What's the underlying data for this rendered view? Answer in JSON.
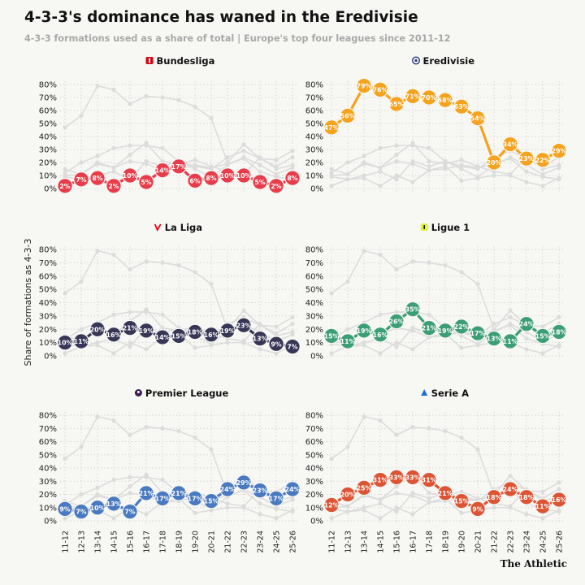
{
  "title": "4-3-3's dominance has waned in the Eredivisie",
  "subtitle": "4-3-3 formations used as a share of total | Europe's top four leagues since 2011-12",
  "credit": "The Athletic",
  "ylabel": "Share of formations as 4-3-3",
  "chart_data": {
    "type": "line",
    "seasons": [
      "11-12",
      "12-13",
      "13-14",
      "14-15",
      "15-16",
      "16-17",
      "17-18",
      "18-19",
      "19-20",
      "20-21",
      "21-22",
      "22-23",
      "23-24",
      "24-25",
      "25-26"
    ],
    "ylim": [
      0,
      80
    ],
    "yticks": [
      "0%",
      "10%",
      "20%",
      "30%",
      "40%",
      "50%",
      "60%",
      "70%",
      "80%"
    ],
    "grid": true,
    "background_series_color": "#dcdcdc",
    "panels": [
      {
        "name": "Bundesliga",
        "color": "#e83c4a",
        "icon": "bundesliga-logo-icon",
        "values": [
          2,
          7,
          8,
          2,
          10,
          5,
          14,
          17,
          6,
          8,
          10,
          10,
          5,
          2,
          8
        ]
      },
      {
        "name": "Eredivisie",
        "color": "#f5a21c",
        "icon": "eredivisie-logo-icon",
        "values": [
          47,
          56,
          79,
          76,
          65,
          71,
          70,
          68,
          63,
          54,
          20,
          34,
          23,
          22,
          29
        ]
      },
      {
        "name": "La Liga",
        "color": "#373656",
        "icon": "laliga-logo-icon",
        "values": [
          10,
          11,
          20,
          16,
          21,
          19,
          14,
          15,
          18,
          16,
          19,
          23,
          13,
          9,
          7
        ]
      },
      {
        "name": "Ligue 1",
        "color": "#3c9e75",
        "icon": "ligue1-logo-icon",
        "values": [
          15,
          11,
          19,
          16,
          26,
          35,
          21,
          19,
          22,
          17,
          13,
          11,
          24,
          15,
          18
        ]
      },
      {
        "name": "Premier League",
        "color": "#4879c1",
        "icon": "premier-league-logo-icon",
        "values": [
          9,
          7,
          10,
          13,
          7,
          21,
          17,
          21,
          17,
          15,
          24,
          29,
          23,
          17,
          24
        ]
      },
      {
        "name": "Serie A",
        "color": "#dc5433",
        "icon": "serie-a-logo-icon",
        "values": [
          12,
          20,
          25,
          31,
          33,
          33,
          31,
          21,
          15,
          9,
          18,
          24,
          18,
          11,
          16
        ]
      }
    ]
  }
}
